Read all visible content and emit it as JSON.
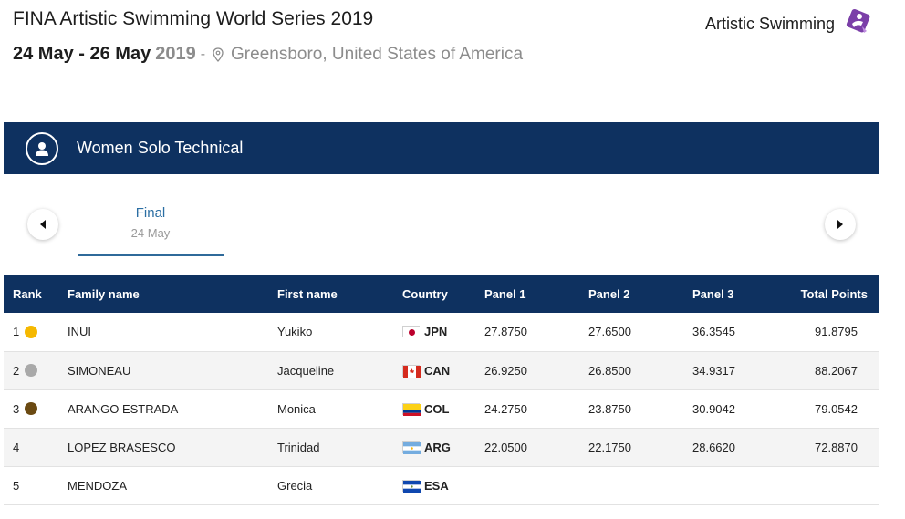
{
  "header": {
    "title": "FINA Artistic Swimming World Series 2019",
    "date_range": "24 May - 26 May",
    "year": "2019",
    "separator": "-",
    "location": "Greensboro, United States of America",
    "sport_label": "Artistic Swimming",
    "sport_icon": "artistic-swimming-logo-icon",
    "pin_icon": "location-pin-icon"
  },
  "event": {
    "name": "Women Solo Technical",
    "icon": "person-avatar-icon"
  },
  "tabs": [
    {
      "label": "Final",
      "date": "24 May",
      "active": true
    }
  ],
  "nav": {
    "prev_icon": "arrow-left-icon",
    "next_icon": "arrow-right-icon"
  },
  "table": {
    "columns": [
      "Rank",
      "Family name",
      "First name",
      "Country",
      "Panel 1",
      "Panel 2",
      "Panel 3",
      "Total Points"
    ],
    "rows": [
      {
        "rank": "1",
        "medal": "gold",
        "family": "INUI",
        "first": "Yukiko",
        "country": "JPN",
        "p1": "27.8750",
        "p2": "27.6500",
        "p3": "36.3545",
        "total": "91.8795"
      },
      {
        "rank": "2",
        "medal": "silver",
        "family": "SIMONEAU",
        "first": "Jacqueline",
        "country": "CAN",
        "p1": "26.9250",
        "p2": "26.8500",
        "p3": "34.9317",
        "total": "88.2067"
      },
      {
        "rank": "3",
        "medal": "bronze",
        "family": "ARANGO ESTRADA",
        "first": "Monica",
        "country": "COL",
        "p1": "24.2750",
        "p2": "23.8750",
        "p3": "30.9042",
        "total": "79.0542"
      },
      {
        "rank": "4",
        "medal": "",
        "family": "LOPEZ BRASESCO",
        "first": "Trinidad",
        "country": "ARG",
        "p1": "22.0500",
        "p2": "22.1750",
        "p3": "28.6620",
        "total": "72.8870"
      },
      {
        "rank": "5",
        "medal": "",
        "family": "MENDOZA",
        "first": "Grecia",
        "country": "ESA",
        "p1": "",
        "p2": "",
        "p3": "",
        "total": ""
      }
    ]
  },
  "colors": {
    "navy": "#0e3160",
    "gold": "#f5b800",
    "silver": "#a9a9a9",
    "bronze": "#6b4a12",
    "accent_purple": "#7b3fa8",
    "tab_blue": "#2b6ea3"
  }
}
